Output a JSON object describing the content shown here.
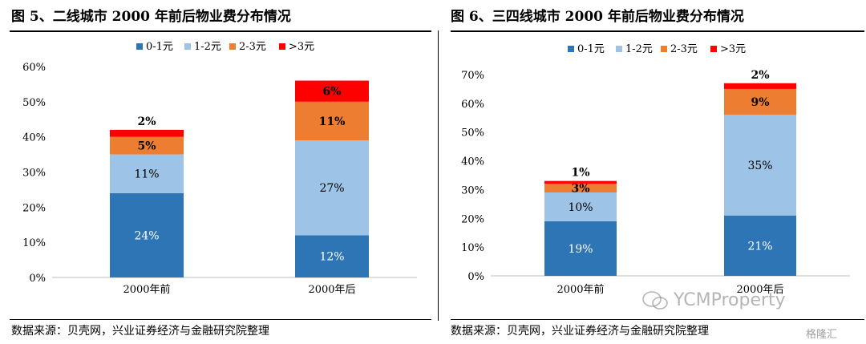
{
  "left": {
    "title": "图 5、二线城市 2000 年前后物业费分布情况",
    "source": "数据来源：贝壳网，兴业证券经济与金融研究院整理"
  },
  "right": {
    "title": "图 6、三四线城市 2000 年前后物业费分布情况",
    "source": "数据来源：贝壳网，兴业证券经济与金融研究院整理"
  },
  "watermark": "YCMProperty",
  "badge": "格隆汇",
  "colors": {
    "s1": "#2E75B6",
    "s2": "#9DC3E6",
    "s3": "#ED7D31",
    "s4": "#FF0000"
  },
  "chart_data": [
    {
      "type": "bar",
      "stacked": true,
      "categories": [
        "2000年前",
        "2000年后"
      ],
      "series": [
        {
          "name": "0-1元",
          "values": [
            24,
            12
          ],
          "labels": [
            "24%",
            "12%"
          ]
        },
        {
          "name": "1-2元",
          "values": [
            11,
            27
          ],
          "labels": [
            "11%",
            "27%"
          ]
        },
        {
          "name": "2-3元",
          "values": [
            5,
            11
          ],
          "labels": [
            "5%",
            "11%"
          ]
        },
        {
          "name": ">3元",
          "values": [
            2,
            6
          ],
          "labels": [
            "2%",
            "6%"
          ]
        }
      ],
      "ylim": [
        0,
        60
      ],
      "yticks": [
        "0%",
        "10%",
        "20%",
        "30%",
        "40%",
        "50%",
        "60%"
      ],
      "legend": "top"
    },
    {
      "type": "bar",
      "stacked": true,
      "categories": [
        "2000年前",
        "2000年后"
      ],
      "series": [
        {
          "name": "0-1元",
          "values": [
            19,
            21
          ],
          "labels": [
            "19%",
            "21%"
          ]
        },
        {
          "name": "1-2元",
          "values": [
            10,
            35
          ],
          "labels": [
            "10%",
            "35%"
          ]
        },
        {
          "name": "2-3元",
          "values": [
            3,
            9
          ],
          "labels": [
            "3%",
            "9%"
          ]
        },
        {
          "name": ">3元",
          "values": [
            1,
            2
          ],
          "labels": [
            "1%",
            "2%"
          ]
        }
      ],
      "ylim": [
        0,
        70
      ],
      "yticks": [
        "0%",
        "10%",
        "20%",
        "30%",
        "40%",
        "50%",
        "60%",
        "70%"
      ],
      "legend": "top"
    }
  ]
}
